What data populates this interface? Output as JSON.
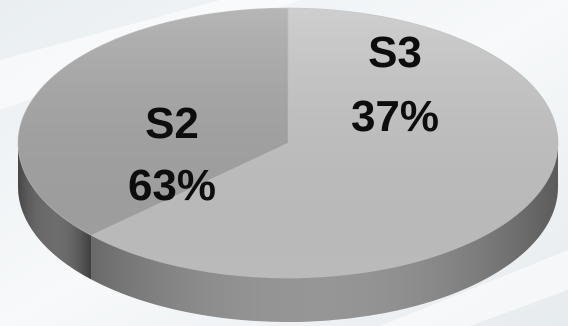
{
  "chart_data": {
    "type": "pie",
    "style": "3d",
    "slices": [
      {
        "name": "S2",
        "value": 63,
        "label": "63%",
        "color": "#c4c4c4",
        "side_color": "#8c8c8c"
      },
      {
        "name": "S3",
        "value": 37,
        "label": "37%",
        "color": "#a6a6a6",
        "side_color": "#5e5e5e"
      }
    ],
    "title": "",
    "legend": "none"
  }
}
